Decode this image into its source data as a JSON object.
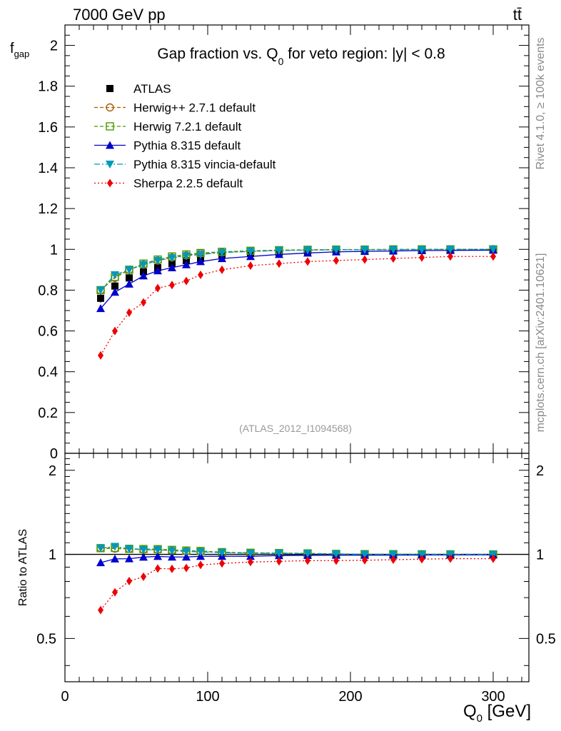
{
  "header": {
    "energy": "7000 GeV pp",
    "process": "tt̄"
  },
  "side": {
    "version": "Rivet 4.1.0, ≥ 100k events",
    "source": "mcplots.cern.ch [arXiv:2401.10621]"
  },
  "chart_data": {
    "type": "line",
    "title": "Gap fraction vs. Q0 for veto region: |y| < 0.8",
    "analysis": "(ATLAS_2012_I1094568)",
    "ylabel": "fgap",
    "ratio_ylabel": "Ratio to ATLAS",
    "xlabel": "Q0 [GeV]",
    "xlim": [
      0,
      325
    ],
    "ylim": [
      0,
      2.1
    ],
    "ratio_ylim": [
      0.35,
      2.3
    ],
    "x_ticks": [
      "0",
      "100",
      "200",
      "300"
    ],
    "y_ticks": [
      "0",
      "0.2",
      "0.4",
      "0.6",
      "0.8",
      "1",
      "1.2",
      "1.4",
      "1.6",
      "1.8",
      "2"
    ],
    "ratio_ticks": [
      "0.5",
      "1",
      "2"
    ],
    "x": [
      25,
      35,
      45,
      55,
      65,
      75,
      85,
      95,
      110,
      130,
      150,
      170,
      190,
      210,
      230,
      250,
      270,
      300
    ],
    "series": [
      {
        "name": "ATLAS",
        "color": "#000000",
        "marker": "square",
        "values": [
          0.76,
          0.82,
          0.86,
          0.89,
          0.91,
          0.93,
          0.945,
          0.955,
          0.97,
          0.98,
          0.985,
          0.99,
          0.995,
          0.997,
          0.998,
          0.999,
          0.9995,
          1.0
        ]
      },
      {
        "name": "Herwig++ 2.7.1 default",
        "color": "#b05a00",
        "marker": "circle-open",
        "values": [
          0.8,
          0.86,
          0.9,
          0.925,
          0.945,
          0.96,
          0.97,
          0.98,
          0.985,
          0.99,
          0.995,
          0.997,
          0.998,
          0.999,
          0.999,
          1.0,
          1.0,
          1.0
        ]
      },
      {
        "name": "Herwig 7.2.1 default",
        "color": "#4a9a00",
        "marker": "square-open",
        "values": [
          0.8,
          0.865,
          0.9,
          0.93,
          0.95,
          0.965,
          0.975,
          0.982,
          0.988,
          0.993,
          0.996,
          0.998,
          0.999,
          0.999,
          1.0,
          1.0,
          1.0,
          1.0
        ]
      },
      {
        "name": "Pythia 8.315 default",
        "color": "#0000cc",
        "marker": "triangle-up",
        "values": [
          0.71,
          0.79,
          0.83,
          0.87,
          0.895,
          0.91,
          0.925,
          0.94,
          0.955,
          0.965,
          0.975,
          0.982,
          0.988,
          0.99,
          0.992,
          0.994,
          0.995,
          0.996
        ]
      },
      {
        "name": "Pythia 8.315 vincia-default",
        "color": "#0099bb",
        "marker": "triangle-down",
        "values": [
          0.8,
          0.875,
          0.9,
          0.925,
          0.945,
          0.958,
          0.968,
          0.975,
          0.984,
          0.99,
          0.994,
          0.996,
          0.998,
          0.998,
          0.999,
          0.999,
          1.0,
          1.0
        ]
      },
      {
        "name": "Sherpa 2.2.5 default",
        "color": "#ee0000",
        "marker": "diamond",
        "values": [
          0.48,
          0.6,
          0.69,
          0.74,
          0.81,
          0.825,
          0.845,
          0.875,
          0.9,
          0.92,
          0.93,
          0.94,
          0.945,
          0.95,
          0.955,
          0.96,
          0.965,
          0.965
        ]
      }
    ]
  }
}
